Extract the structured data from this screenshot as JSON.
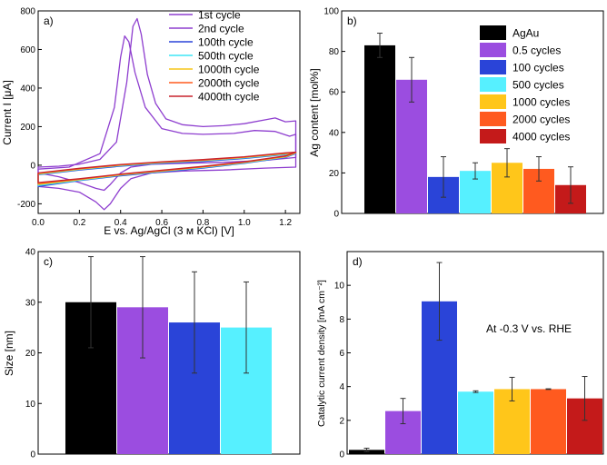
{
  "chart_data": [
    {
      "type": "line",
      "panel_label": "a)",
      "xlabel": "E vs. Ag/AgCl (3 м KCl) [V]",
      "ylabel": "Current I [μA]",
      "xlim": [
        0.0,
        1.27
      ],
      "ylim": [
        -250,
        800
      ],
      "xticks": [
        0.0,
        0.2,
        0.4,
        0.6,
        0.8,
        1.0,
        1.2
      ],
      "xtick_labels": [
        "0.0",
        "0.2",
        "0.4",
        "0.6",
        "0.8",
        "1.0",
        "1.2"
      ],
      "yticks": [
        -200,
        0,
        200,
        400,
        600,
        800
      ],
      "ytick_labels": [
        "-200",
        "0",
        "200",
        "400",
        "600",
        "800"
      ],
      "legend_position": "top-right",
      "series": [
        {
          "name": "1st cycle",
          "color": "#8e3ecf",
          "points": [
            [
              0.0,
              -10
            ],
            [
              0.1,
              -5
            ],
            [
              0.2,
              5
            ],
            [
              0.3,
              30
            ],
            [
              0.38,
              120
            ],
            [
              0.43,
              430
            ],
            [
              0.46,
              720
            ],
            [
              0.48,
              760
            ],
            [
              0.5,
              680
            ],
            [
              0.53,
              470
            ],
            [
              0.57,
              320
            ],
            [
              0.62,
              240
            ],
            [
              0.7,
              210
            ],
            [
              0.8,
              200
            ],
            [
              0.9,
              205
            ],
            [
              1.0,
              215
            ],
            [
              1.1,
              235
            ],
            [
              1.15,
              245
            ],
            [
              1.2,
              225
            ],
            [
              1.25,
              230
            ],
            [
              1.25,
              40
            ],
            [
              1.1,
              25
            ],
            [
              0.9,
              15
            ],
            [
              0.7,
              10
            ],
            [
              0.55,
              5
            ],
            [
              0.45,
              -10
            ],
            [
              0.4,
              -40
            ],
            [
              0.35,
              -100
            ],
            [
              0.32,
              -130
            ],
            [
              0.28,
              -120
            ],
            [
              0.2,
              -90
            ],
            [
              0.1,
              -60
            ],
            [
              0.0,
              -40
            ]
          ]
        },
        {
          "name": "2nd cycle",
          "color": "#8e3ecf",
          "points": [
            [
              0.0,
              -20
            ],
            [
              0.15,
              -10
            ],
            [
              0.3,
              60
            ],
            [
              0.37,
              300
            ],
            [
              0.4,
              560
            ],
            [
              0.42,
              670
            ],
            [
              0.44,
              640
            ],
            [
              0.47,
              480
            ],
            [
              0.52,
              300
            ],
            [
              0.6,
              190
            ],
            [
              0.7,
              165
            ],
            [
              0.8,
              160
            ],
            [
              0.95,
              165
            ],
            [
              1.05,
              180
            ],
            [
              1.15,
              175
            ],
            [
              1.22,
              150
            ],
            [
              1.25,
              160
            ],
            [
              1.25,
              -10
            ],
            [
              1.1,
              -15
            ],
            [
              0.9,
              -25
            ],
            [
              0.7,
              -30
            ],
            [
              0.55,
              -40
            ],
            [
              0.45,
              -70
            ],
            [
              0.4,
              -120
            ],
            [
              0.35,
              -200
            ],
            [
              0.32,
              -230
            ],
            [
              0.28,
              -190
            ],
            [
              0.2,
              -140
            ],
            [
              0.1,
              -120
            ],
            [
              0.0,
              -110
            ]
          ]
        },
        {
          "name": "100th cycle",
          "color": "#2a44d8",
          "points": [
            [
              0.0,
              -110
            ],
            [
              0.2,
              -80
            ],
            [
              0.4,
              -55
            ],
            [
              0.6,
              -35
            ],
            [
              0.8,
              -15
            ],
            [
              1.0,
              10
            ],
            [
              1.2,
              40
            ],
            [
              1.25,
              60
            ],
            [
              1.2,
              55
            ],
            [
              1.0,
              35
            ],
            [
              0.8,
              20
            ],
            [
              0.6,
              10
            ],
            [
              0.4,
              -5
            ],
            [
              0.2,
              -25
            ],
            [
              0.0,
              -50
            ]
          ]
        },
        {
          "name": "500th cycle",
          "color": "#3fe6f5",
          "points": [
            [
              0.0,
              -105
            ],
            [
              0.2,
              -78
            ],
            [
              0.4,
              -52
            ],
            [
              0.6,
              -32
            ],
            [
              0.8,
              -12
            ],
            [
              1.0,
              12
            ],
            [
              1.2,
              42
            ],
            [
              1.25,
              62
            ],
            [
              1.2,
              57
            ],
            [
              1.0,
              38
            ],
            [
              0.8,
              23
            ],
            [
              0.6,
              12
            ],
            [
              0.4,
              -2
            ],
            [
              0.2,
              -22
            ],
            [
              0.0,
              -48
            ]
          ]
        },
        {
          "name": "1000th cycle",
          "color": "#f5c518",
          "points": [
            [
              0.0,
              -100
            ],
            [
              0.2,
              -75
            ],
            [
              0.4,
              -50
            ],
            [
              0.6,
              -30
            ],
            [
              0.8,
              -10
            ],
            [
              1.0,
              14
            ],
            [
              1.2,
              44
            ],
            [
              1.25,
              64
            ],
            [
              1.2,
              60
            ],
            [
              1.0,
              40
            ],
            [
              0.8,
              25
            ],
            [
              0.6,
              14
            ],
            [
              0.4,
              0
            ],
            [
              0.2,
              -20
            ],
            [
              0.0,
              -45
            ]
          ]
        },
        {
          "name": "2000th cycle",
          "color": "#ff5a1f",
          "points": [
            [
              0.0,
              -95
            ],
            [
              0.2,
              -72
            ],
            [
              0.4,
              -48
            ],
            [
              0.6,
              -28
            ],
            [
              0.8,
              -8
            ],
            [
              1.0,
              16
            ],
            [
              1.2,
              46
            ],
            [
              1.25,
              66
            ],
            [
              1.2,
              62
            ],
            [
              1.0,
              42
            ],
            [
              0.8,
              27
            ],
            [
              0.6,
              16
            ],
            [
              0.4,
              2
            ],
            [
              0.2,
              -18
            ],
            [
              0.0,
              -42
            ]
          ]
        },
        {
          "name": "4000th cycle",
          "color": "#c8232d",
          "points": [
            [
              0.0,
              -90
            ],
            [
              0.2,
              -70
            ],
            [
              0.4,
              -46
            ],
            [
              0.6,
              -26
            ],
            [
              0.8,
              -6
            ],
            [
              1.0,
              18
            ],
            [
              1.2,
              48
            ],
            [
              1.25,
              68
            ],
            [
              1.2,
              64
            ],
            [
              1.0,
              44
            ],
            [
              0.8,
              29
            ],
            [
              0.6,
              18
            ],
            [
              0.4,
              4
            ],
            [
              0.2,
              -16
            ],
            [
              0.0,
              -40
            ]
          ]
        }
      ]
    },
    {
      "type": "bar",
      "panel_label": "b)",
      "xlabel": "",
      "ylabel": "Ag content [mol%]",
      "ylim": [
        0,
        100
      ],
      "yticks": [
        0,
        20,
        40,
        60,
        80,
        100
      ],
      "ytick_labels": [
        "0",
        "20",
        "40",
        "60",
        "80",
        "100"
      ],
      "categories": [
        "AgAu",
        "0.5 cycles",
        "100 cycles",
        "500 cycles",
        "1000 cycles",
        "2000 cycles",
        "4000 cycles"
      ],
      "values": [
        83,
        66,
        18,
        21,
        25,
        22,
        14
      ],
      "errors": [
        6,
        11,
        10,
        4,
        7,
        6,
        9
      ],
      "colors": [
        "#000000",
        "#9b4de0",
        "#2a44d8",
        "#56f0ff",
        "#ffc61a",
        "#ff5a1f",
        "#c41a1a"
      ],
      "legend_position": "top-right"
    },
    {
      "type": "bar",
      "panel_label": "c)",
      "xlabel": "",
      "ylabel": "Size [nm]",
      "ylim": [
        0,
        40
      ],
      "yticks": [
        0,
        10,
        20,
        30,
        40
      ],
      "ytick_labels": [
        "0",
        "10",
        "20",
        "30",
        "40"
      ],
      "values": [
        30,
        29,
        26,
        25
      ],
      "errors": [
        9,
        10,
        10,
        9
      ],
      "colors": [
        "#000000",
        "#9b4de0",
        "#2a44d8",
        "#56f0ff"
      ]
    },
    {
      "type": "bar",
      "panel_label": "d)",
      "xlabel": "",
      "ylabel": "Catalytic current density [mA cm⁻²]",
      "annotation": "At -0.3 V vs. RHE",
      "ylim": [
        0,
        12
      ],
      "yticks": [
        0,
        2,
        4,
        6,
        8,
        10
      ],
      "ytick_labels": [
        "0",
        "2",
        "4",
        "6",
        "8",
        "10"
      ],
      "values": [
        0.25,
        2.55,
        9.05,
        3.7,
        3.85,
        3.85,
        3.3
      ],
      "errors": [
        0.1,
        0.75,
        2.3,
        0.05,
        0.7,
        0.02,
        1.3
      ],
      "colors": [
        "#000000",
        "#9b4de0",
        "#2a44d8",
        "#56f0ff",
        "#ffc61a",
        "#ff5a1f",
        "#c41a1a"
      ]
    }
  ]
}
